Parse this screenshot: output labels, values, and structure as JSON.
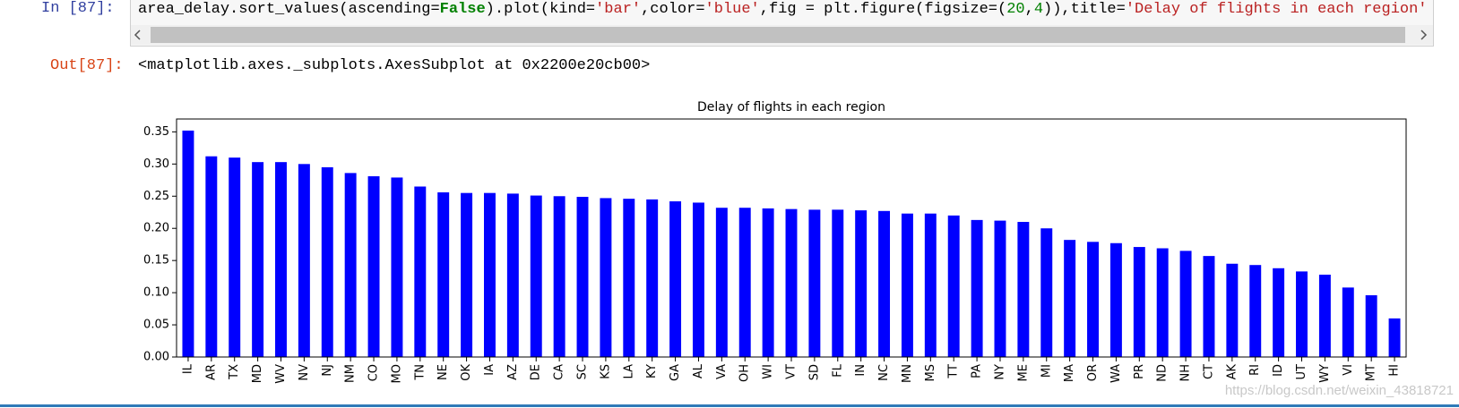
{
  "input": {
    "prompt": "In  [87]:",
    "code": [
      "area_delay.sort_values(ascending=",
      "False",
      ").plot(kind=",
      "'bar'",
      ",color=",
      "'blue'",
      ",fig = plt.figure(figsize=(",
      "20",
      ",",
      "4",
      ")),title=",
      "'Delay of flights in each region'"
    ]
  },
  "output": {
    "prompt": "Out[87]:",
    "text": "<matplotlib.axes._subplots.AxesSubplot at 0x2200e20cb00>"
  },
  "watermark": "https://blog.csdn.net/weixin_43818721",
  "chart_data": {
    "type": "bar",
    "title": "Delay of flights in each region",
    "color": "blue",
    "categories": [
      "IL",
      "AR",
      "TX",
      "MD",
      "WV",
      "NV",
      "NJ",
      "NM",
      "CO",
      "MO",
      "TN",
      "NE",
      "OK",
      "IA",
      "AZ",
      "DE",
      "CA",
      "SC",
      "KS",
      "LA",
      "KY",
      "GA",
      "AL",
      "VA",
      "OH",
      "WI",
      "VT",
      "SD",
      "FL",
      "IN",
      "NC",
      "MN",
      "MS",
      "TT",
      "PA",
      "NY",
      "ME",
      "MI",
      "MA",
      "OR",
      "WA",
      "PR",
      "ND",
      "NH",
      "CT",
      "AK",
      "RI",
      "ID",
      "UT",
      "WY",
      "VI",
      "MT",
      "HI"
    ],
    "values": [
      0.352,
      0.312,
      0.31,
      0.303,
      0.303,
      0.3,
      0.295,
      0.286,
      0.281,
      0.279,
      0.265,
      0.256,
      0.255,
      0.255,
      0.254,
      0.251,
      0.25,
      0.249,
      0.247,
      0.246,
      0.245,
      0.242,
      0.24,
      0.232,
      0.232,
      0.231,
      0.23,
      0.229,
      0.229,
      0.228,
      0.227,
      0.223,
      0.223,
      0.22,
      0.213,
      0.212,
      0.21,
      0.2,
      0.182,
      0.179,
      0.177,
      0.171,
      0.169,
      0.165,
      0.157,
      0.145,
      0.143,
      0.138,
      0.133,
      0.128,
      0.108,
      0.096,
      0.06
    ],
    "ylim": [
      0,
      0.37
    ],
    "yticks": [
      {
        "value": 0,
        "label": "0.00"
      },
      0.05,
      {
        "value": 0.1,
        "label": "0.10"
      },
      0.15,
      {
        "value": 0.2,
        "label": "0.20"
      },
      0.25,
      {
        "value": 0.3,
        "label": "0.30"
      },
      0.35
    ]
  }
}
